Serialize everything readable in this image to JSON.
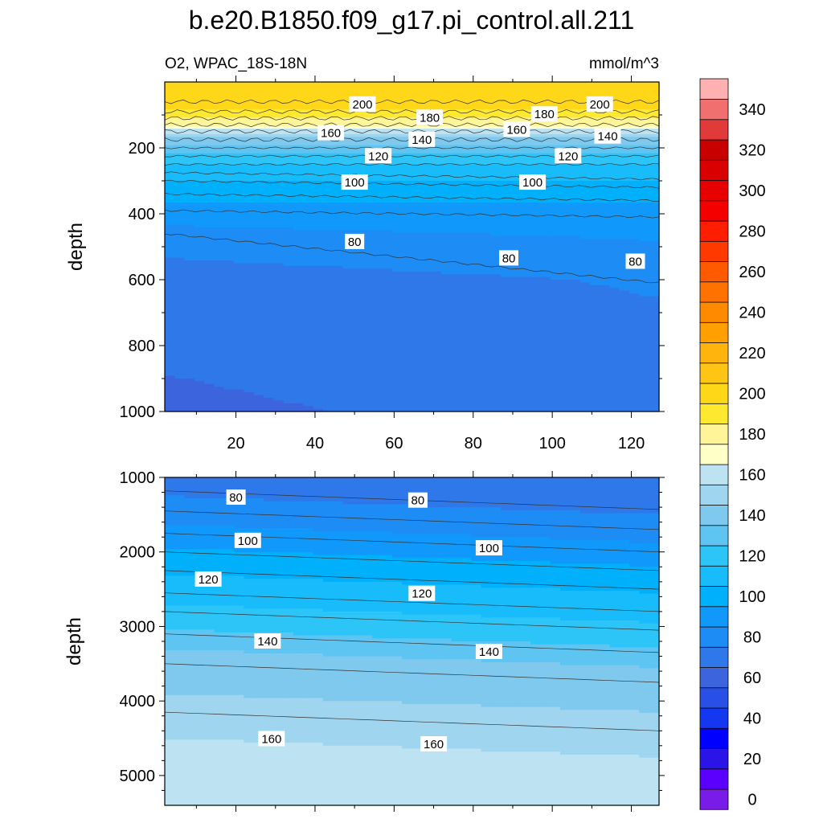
{
  "chart_data": {
    "type": "contour",
    "title": "b.e20.B1850.f09_g17.pi_control.all.211",
    "left_subtitle": "O2, WPAC_18S-18N",
    "units": "mmol/m^3",
    "ylabel": "depth",
    "x_ticks": [
      20,
      40,
      60,
      80,
      100,
      120
    ],
    "x_range": [
      2,
      127
    ],
    "colorbar": {
      "levels": [
        0,
        10,
        20,
        30,
        40,
        50,
        60,
        70,
        80,
        90,
        100,
        110,
        120,
        130,
        140,
        150,
        160,
        170,
        180,
        190,
        200,
        210,
        220,
        230,
        240,
        250,
        260,
        270,
        280,
        290,
        300,
        310,
        320,
        330,
        340,
        350
      ],
      "labels": [
        "0",
        "20",
        "40",
        "60",
        "80",
        "100",
        "120",
        "140",
        "160",
        "180",
        "200",
        "220",
        "240",
        "260",
        "280",
        "300",
        "320",
        "340"
      ],
      "colors": [
        "#7a1ce8",
        "#5a00ff",
        "#2b14e8",
        "#0000ff",
        "#1438f0",
        "#2850e6",
        "#3c64dc",
        "#2f78ea",
        "#1e8cf5",
        "#1099fa",
        "#00b0fb",
        "#19bcfa",
        "#2dc5f7",
        "#5ec4f2",
        "#7ec9ed",
        "#a0d5f0",
        "#bde3f3",
        "#ffffc8",
        "#fff598",
        "#ffe830",
        "#ffd719",
        "#ffc514",
        "#ffb30c",
        "#ffa000",
        "#ff8a00",
        "#ff7200",
        "#ff5a00",
        "#ff3a00",
        "#ff1e00",
        "#f40000",
        "#e60000",
        "#d80000",
        "#c80000",
        "#e03a3a",
        "#f07070",
        "#ffb0b0"
      ]
    },
    "panels": [
      {
        "name": "upper",
        "y_range": [
          0,
          1000
        ],
        "y_ticks": [
          200,
          400,
          600,
          800,
          1000
        ],
        "contour_labels": [
          {
            "text": "200",
            "x": 52,
            "y": 68
          },
          {
            "text": "180",
            "x": 69,
            "y": 108
          },
          {
            "text": "180",
            "x": 98,
            "y": 98
          },
          {
            "text": "200",
            "x": 112,
            "y": 68
          },
          {
            "text": "160",
            "x": 44,
            "y": 155
          },
          {
            "text": "160",
            "x": 91,
            "y": 145
          },
          {
            "text": "140",
            "x": 67,
            "y": 175
          },
          {
            "text": "140",
            "x": 114,
            "y": 165
          },
          {
            "text": "120",
            "x": 56,
            "y": 225
          },
          {
            "text": "120",
            "x": 104,
            "y": 225
          },
          {
            "text": "100",
            "x": 50,
            "y": 305
          },
          {
            "text": "100",
            "x": 95,
            "y": 305
          },
          {
            "text": "80",
            "x": 50,
            "y": 485
          },
          {
            "text": "80",
            "x": 89,
            "y": 535
          },
          {
            "text": "80",
            "x": 121,
            "y": 545
          }
        ]
      },
      {
        "name": "lower",
        "y_range": [
          1000,
          5400
        ],
        "y_ticks": [
          1000,
          2000,
          3000,
          4000,
          5000
        ],
        "contour_labels": [
          {
            "text": "80",
            "x": 20,
            "y": 1270
          },
          {
            "text": "80",
            "x": 66,
            "y": 1310
          },
          {
            "text": "100",
            "x": 23,
            "y": 1850
          },
          {
            "text": "100",
            "x": 84,
            "y": 1950
          },
          {
            "text": "120",
            "x": 13,
            "y": 2370
          },
          {
            "text": "120",
            "x": 67,
            "y": 2560
          },
          {
            "text": "140",
            "x": 28,
            "y": 3200
          },
          {
            "text": "140",
            "x": 84,
            "y": 3340
          },
          {
            "text": "160",
            "x": 29,
            "y": 4510
          },
          {
            "text": "160",
            "x": 70,
            "y": 4580
          }
        ]
      }
    ]
  }
}
